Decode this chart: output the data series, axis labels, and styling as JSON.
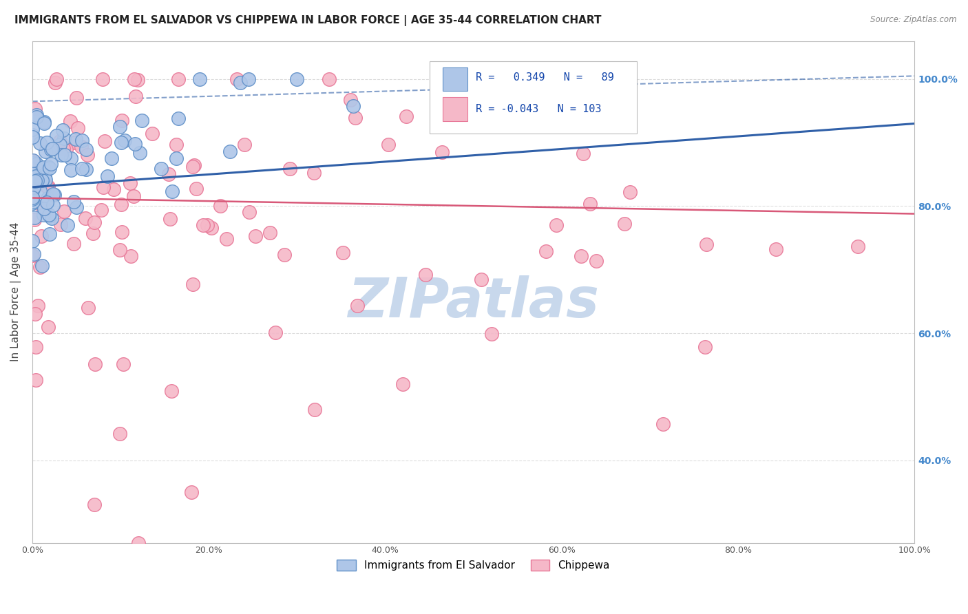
{
  "title": "IMMIGRANTS FROM EL SALVADOR VS CHIPPEWA IN LABOR FORCE | AGE 35-44 CORRELATION CHART",
  "source": "Source: ZipAtlas.com",
  "ylabel": "In Labor Force | Age 35-44",
  "xlim": [
    0.0,
    1.0
  ],
  "ylim": [
    0.27,
    1.06
  ],
  "blue_R": 0.349,
  "blue_N": 89,
  "pink_R": -0.043,
  "pink_N": 103,
  "blue_color": "#aec6e8",
  "pink_color": "#f5b8c8",
  "blue_edge": "#6090c8",
  "pink_edge": "#e87898",
  "blue_line_color": "#3060a8",
  "pink_line_color": "#d85878",
  "watermark_color": "#c8d8ec",
  "legend_label_blue": "Immigrants from El Salvador",
  "legend_label_pink": "Chippewa",
  "grid_color": "#dddddd",
  "right_tick_color": "#4488cc",
  "title_color": "#222222",
  "source_color": "#888888",
  "ylabel_color": "#444444"
}
